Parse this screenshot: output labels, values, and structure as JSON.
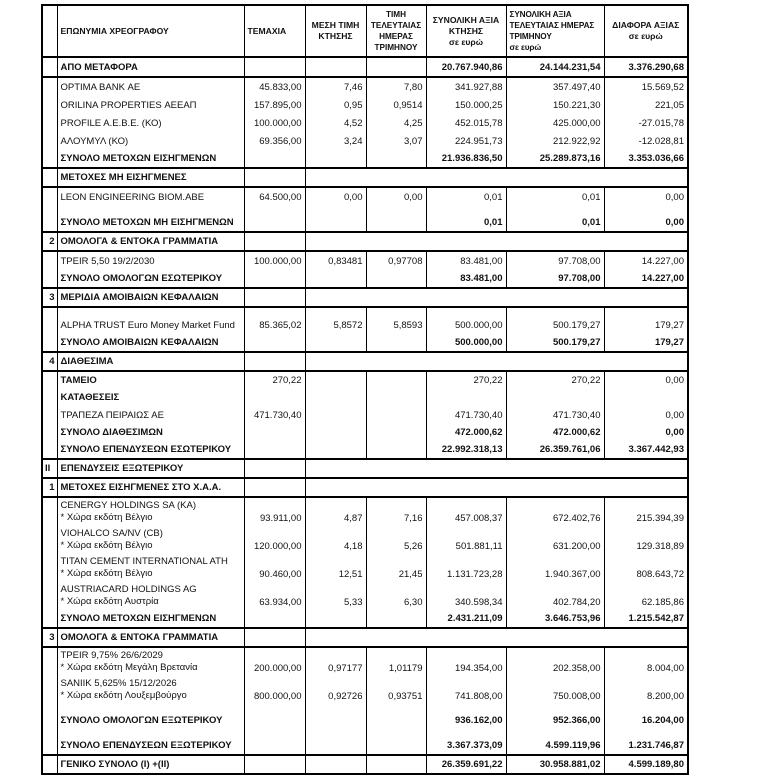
{
  "table": {
    "columns": [
      {
        "text": "",
        "align": "center"
      },
      {
        "text": "ΕΠΩΝΥΜΙΑ ΧΡΕΟΓΡΑΦΟΥ",
        "align": "left"
      },
      {
        "text": "ΤΕΜΑΧΙΑ",
        "align": "left"
      },
      {
        "text": "ΜΕΣΗ ΤΙΜΗ\nΚΤΗΣΗΣ",
        "align": "center"
      },
      {
        "text": "ΤΙΜΗ\nΤΕΛΕΥΤΑΙΑΣ\nΗΜΕΡΑΣ\nΤΡΙΜΗΝΟΥ",
        "align": "center"
      },
      {
        "text": "ΣΥΝΟΛΙΚΗ ΑΞΙΑ\nΚΤΗΣΗΣ\nσε ευρώ",
        "align": "center"
      },
      {
        "text": "ΣΥΝΟΛΙΚΗ ΑΞΙΑ\nΤΕΛΕΥΤΑΙΑΣ ΗΜΕΡΑΣ\nΤΡΙΜΗΝΟΥ\nσε ευρώ",
        "align": "left"
      },
      {
        "text": "ΔΙΑΦΟΡΑ ΑΞΙΑΣ\nσε ευρώ",
        "align": "center"
      }
    ],
    "groups": [
      {
        "rows": [
          {
            "kind": "carry",
            "name": "ΑΠΟ ΜΕΤΑΦΟΡΑ",
            "v": [
              "",
              "",
              "",
              "20.767.940,86",
              "24.144.231,54",
              "3.376.290,68"
            ]
          }
        ]
      },
      {
        "rows": [
          {
            "kind": "item",
            "name": "OPTIMA BANK ΑΕ",
            "v": [
              "45.833,00",
              "7,46",
              "7,80",
              "341.927,88",
              "357.497,40",
              "15.569,52"
            ]
          },
          {
            "kind": "item",
            "name": "ORILINA PROPERTIES ΑΕΕΑΠ",
            "v": [
              "157.895,00",
              "0,95",
              "0,9514",
              "150.000,25",
              "150.221,30",
              "221,05"
            ]
          },
          {
            "kind": "item",
            "name": "PROFILE A.E.B.E. (ΚΟ)",
            "v": [
              "100.000,00",
              "4,52",
              "4,25",
              "452.015,78",
              "425.000,00",
              "-27.015,78"
            ]
          },
          {
            "kind": "item",
            "name": "ΑΛΟΥΜΥΛ (ΚΟ)",
            "v": [
              "69.356,00",
              "3,24",
              "3,07",
              "224.951,73",
              "212.922,92",
              "-12.028,81"
            ]
          },
          {
            "kind": "total",
            "name": "ΣΥΝΟΛΟ ΜΕΤΟΧΩΝ ΕΙΣΗΓΜΕΝΩΝ",
            "v": [
              "",
              "",
              "",
              "21.936.836,50",
              "25.289.873,16",
              "3.353.036,66"
            ]
          }
        ]
      },
      {
        "rows": [
          {
            "kind": "section",
            "name": "ΜΕΤΟΧΕΣ ΜΗ ΕΙΣΗΓΜΕΝΕΣ"
          }
        ]
      },
      {
        "rows": [
          {
            "kind": "item",
            "name": "LEON ENGINEERING BIOM.ABE",
            "v": [
              "64.500,00",
              "0,00",
              "0,00",
              "0,01",
              "0,01",
              "0,00"
            ]
          },
          {
            "kind": "blank"
          },
          {
            "kind": "total",
            "name": "ΣΥΝΟΛΟ ΜΕΤΟΧΩΝ ΜΗ ΕΙΣΗΓΜΕΝΩΝ",
            "v": [
              "",
              "",
              "",
              "0,01",
              "0,01",
              "0,00"
            ]
          }
        ]
      },
      {
        "rows": [
          {
            "kind": "section",
            "num": "2",
            "name": "ΟΜΟΛΟΓΑ & ΕΝΤΟΚΑ ΓΡΑΜΜΑΤΙΑ"
          }
        ]
      },
      {
        "rows": [
          {
            "kind": "item",
            "name": "TPEIR 5,50 19/2/2030",
            "v": [
              "100.000,00",
              "0,83481",
              "0,97708",
              "83.481,00",
              "97.708,00",
              "14.227,00"
            ]
          },
          {
            "kind": "total",
            "name": "ΣΥΝΟΛΟ ΟΜΟΛΟΓΩΝ ΕΣΩΤΕΡΙΚΟΥ",
            "v": [
              "",
              "",
              "",
              "83.481,00",
              "97.708,00",
              "14.227,00"
            ]
          }
        ]
      },
      {
        "rows": [
          {
            "kind": "section",
            "num": "3",
            "name": "ΜΕΡΙΔΙΑ ΑΜΟΙΒΑΙΩΝ ΚΕΦΑΛΑΙΩΝ"
          }
        ]
      },
      {
        "rows": [
          {
            "kind": "blank"
          },
          {
            "kind": "item",
            "name": "ALPHA TRUST Euro Money Market Fund",
            "v": [
              "85.365,02",
              "5,8572",
              "5,8593",
              "500.000,00",
              "500.179,27",
              "179,27"
            ]
          },
          {
            "kind": "total",
            "name": "ΣΥΝΟΛΟ ΑΜΟΙΒΑΙΩΝ ΚΕΦΑΛΑΙΩΝ",
            "v": [
              "",
              "",
              "",
              "500.000,00",
              "500.179,27",
              "179,27"
            ]
          }
        ]
      },
      {
        "rows": [
          {
            "kind": "section",
            "num": "4",
            "name": "ΔΙΑΘΕΣΙΜΑ"
          }
        ]
      },
      {
        "rows": [
          {
            "kind": "label",
            "name": "ΤΑΜΕΙΟ",
            "v": [
              "270,22",
              "",
              "",
              "270,22",
              "270,22",
              "0,00"
            ]
          },
          {
            "kind": "label",
            "name": "ΚΑΤΑΘΕΣΕΙΣ",
            "v": [
              "",
              "",
              "",
              "",
              "",
              ""
            ]
          },
          {
            "kind": "item",
            "name": "ΤΡΑΠΕΖΑ ΠΕΙΡΑΙΩΣ ΑΕ",
            "v": [
              "471.730,40",
              "",
              "",
              "471.730,40",
              "471.730,40",
              "0,00"
            ]
          },
          {
            "kind": "total",
            "name": "ΣΥΝΟΛΟ ΔΙΑΘΕΣΙΜΩΝ",
            "v": [
              "",
              "",
              "",
              "472.000,62",
              "472.000,62",
              "0,00"
            ]
          },
          {
            "kind": "total",
            "name": "ΣΥΝΟΛΟ ΕΠΕΝΔΥΣΕΩΝ ΕΣΩΤΕΡΙΚΟΥ",
            "v": [
              "",
              "",
              "",
              "22.992.318,13",
              "26.359.761,06",
              "3.367.442,93"
            ]
          }
        ]
      },
      {
        "rows": [
          {
            "kind": "section",
            "num": "II",
            "num_align": "left",
            "name": "ΕΠΕΝΔΥΣΕΙΣ ΕΞΩΤΕΡΙΚΟΥ"
          }
        ]
      },
      {
        "rows": [
          {
            "kind": "section",
            "num": "1",
            "name": "ΜΕΤΟΧΕΣ ΕΙΣΗΓΜΕΝΕΣ ΣΤΟ Χ.Α.Α."
          }
        ]
      },
      {
        "rows": [
          {
            "kind": "item2",
            "name": "CENERGY HOLDINGS SA (ΚΑ)",
            "name2": "* Χώρα εκδότη Βέλγιο",
            "v": [
              "93.911,00",
              "4,87",
              "7,16",
              "457.008,37",
              "672.402,76",
              "215.394,39"
            ]
          },
          {
            "kind": "item2",
            "name": "VIOHALCO SA/NV (CB)",
            "name2": "* Χώρα εκδότη Βέλγιο",
            "v": [
              "120.000,00",
              "4,18",
              "5,26",
              "501.881,11",
              "631.200,00",
              "129.318,89"
            ]
          },
          {
            "kind": "item2",
            "name": "TITAN CEMENT INTERNATIONAL ATH",
            "name2": "* Χώρα εκδότη Βέλγιο",
            "v": [
              "90.460,00",
              "12,51",
              "21,45",
              "1.131.723,28",
              "1.940.367,00",
              "808.643,72"
            ]
          },
          {
            "kind": "item2",
            "name": "AUSTRIACARD HOLDINGS AG",
            "name2": "* Χώρα εκδότη Αυστρία",
            "v": [
              "63.934,00",
              "5,33",
              "6,30",
              "340.598,34",
              "402.784,20",
              "62.185,86"
            ]
          },
          {
            "kind": "total",
            "name": "ΣΥΝΟΛΟ ΜΕΤΟΧΩΝ ΕΙΣΗΓΜΕΝΩΝ",
            "v": [
              "",
              "",
              "",
              "2.431.211,09",
              "3.646.753,96",
              "1.215.542,87"
            ]
          }
        ]
      },
      {
        "rows": [
          {
            "kind": "section",
            "num": "3",
            "name": "ΟΜΟΛΟΓΑ & ΕΝΤΟΚΑ ΓΡΑΜΜΑΤΙΑ"
          }
        ]
      },
      {
        "rows": [
          {
            "kind": "item2",
            "name": "TPEIR 9,75% 26/6/2029",
            "name2": "* Χώρα εκδότη Μεγάλη Βρετανία",
            "v": [
              "200.000,00",
              "0,97177",
              "1,01179",
              "194.354,00",
              "202.358,00",
              "8.004,00"
            ]
          },
          {
            "kind": "item2",
            "name": "SANIIK 5,625% 15/12/2026",
            "name2": "* Χώρα εκδότη Λουξεμβούργο",
            "v": [
              "800.000,00",
              "0,92726",
              "0,93751",
              "741.808,00",
              "750.008,00",
              "8.200,00"
            ]
          },
          {
            "kind": "totalsp",
            "name": "ΣΥΝΟΛΟ ΟΜΟΛΟΓΩΝ ΕΞΩΤΕΡΙΚΟΥ",
            "v": [
              "",
              "",
              "",
              "936.162,00",
              "952.366,00",
              "16.204,00"
            ]
          },
          {
            "kind": "totalsp",
            "name": "ΣΥΝΟΛΟ ΕΠΕΝΔΥΣΕΩΝ ΕΞΩΤΕΡΙΚΟΥ",
            "v": [
              "",
              "",
              "",
              "3.367.373,09",
              "4.599.119,96",
              "1.231.746,87"
            ]
          }
        ]
      },
      {
        "rows": [
          {
            "kind": "grand",
            "name": "ΓΕΝΙΚΟ ΣΥΝΟΛΟ (Ι) +(ΙΙ)",
            "v": [
              "",
              "",
              "",
              "26.359.691,22",
              "30.958.881,02",
              "4.599.189,80"
            ]
          }
        ]
      }
    ]
  }
}
